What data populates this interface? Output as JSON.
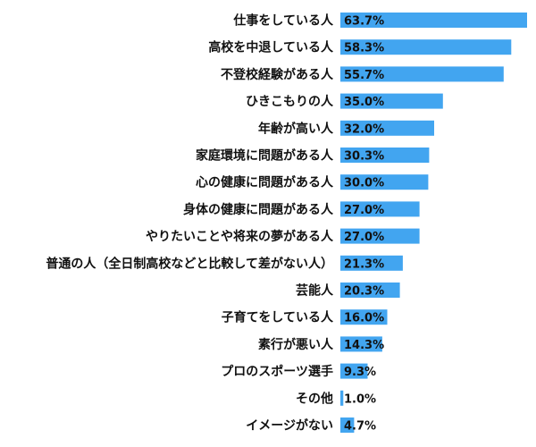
{
  "chart_data": {
    "type": "bar",
    "orientation": "horizontal",
    "categories": [
      "仕事をしている人",
      "高校を中退している人",
      "不登校経験がある人",
      "ひきこもりの人",
      "年齢が高い人",
      "家庭環境に問題がある人",
      "心の健康に問題がある人",
      "身体の健康に問題がある人",
      "やりたいことや将来の夢がある人",
      "普通の人（全日制高校などと比較して差がない人）",
      "芸能人",
      "子育てをしている人",
      "素行が悪い人",
      "プロのスポーツ選手",
      "その他",
      "イメージがない"
    ],
    "values": [
      63.7,
      58.3,
      55.7,
      35.0,
      32.0,
      30.3,
      30.0,
      27.0,
      27.0,
      21.3,
      20.3,
      16.0,
      14.3,
      9.3,
      1.0,
      4.7
    ],
    "value_labels": [
      "63.7%",
      "58.3%",
      "55.7%",
      "35.0%",
      "32.0%",
      "30.3%",
      "30.0%",
      "27.0%",
      "27.0%",
      "21.3%",
      "20.3%",
      "16.0%",
      "14.3%",
      "9.3%",
      "1.0%",
      "4.7%"
    ],
    "xlim": [
      0,
      63.7
    ],
    "grid": false,
    "legend": "none",
    "bar_color": "#42a5f0"
  }
}
